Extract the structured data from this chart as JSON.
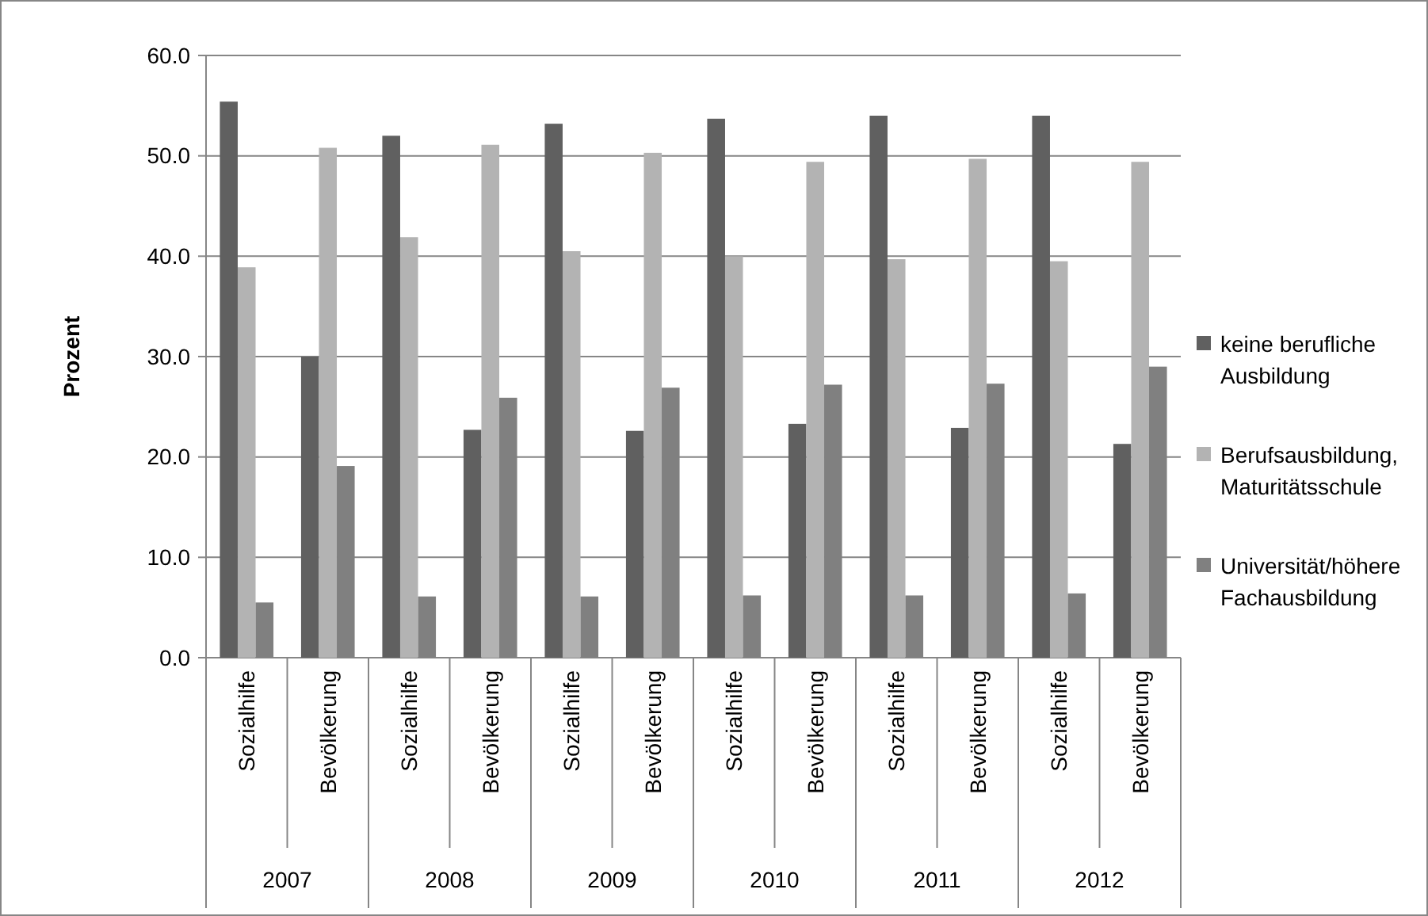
{
  "chart_data": {
    "type": "bar",
    "ylabel": "Prozent",
    "categories": [
      "Sozialhilfe",
      "Bevölkerung",
      "Sozialhilfe",
      "Bevölkerung",
      "Sozialhilfe",
      "Bevölkerung",
      "Sozialhilfe",
      "Bevölkerung",
      "Sozialhilfe",
      "Bevölkerung",
      "Sozialhilfe",
      "Bevölkerung"
    ],
    "annotations": [
      "2007",
      "2008",
      "2009",
      "2010",
      "2011",
      "2012"
    ],
    "series": [
      {
        "name": "keine berufliche Ausbildung",
        "color": "#606060",
        "values": [
          55.4,
          30.0,
          52.0,
          22.7,
          53.2,
          22.6,
          53.7,
          23.3,
          54.0,
          22.9,
          54.0,
          21.3
        ]
      },
      {
        "name": "Berufsausbildung, Maturitätsschule",
        "color": "#b3b3b3",
        "values": [
          38.9,
          50.8,
          41.9,
          51.1,
          40.5,
          50.3,
          40.0,
          49.4,
          39.7,
          49.7,
          39.5,
          49.4
        ]
      },
      {
        "name": "Universität/höhere Fachausbildung",
        "color": "#808080",
        "values": [
          5.5,
          19.1,
          6.1,
          25.9,
          6.1,
          26.9,
          6.2,
          27.2,
          6.2,
          27.3,
          6.4,
          29.0
        ]
      }
    ],
    "ylim": [
      0,
      60
    ],
    "yticks": [
      {
        "value": 0,
        "label": "0.0"
      },
      {
        "value": 10,
        "label": "10.0"
      },
      {
        "value": 20,
        "label": "20.0"
      },
      {
        "value": 30,
        "label": "30.0"
      },
      {
        "value": 40,
        "label": "40.0"
      },
      {
        "value": 50,
        "label": "50.0"
      },
      {
        "value": 60,
        "label": "60.0"
      }
    ],
    "grid": "y",
    "legend": "right"
  }
}
